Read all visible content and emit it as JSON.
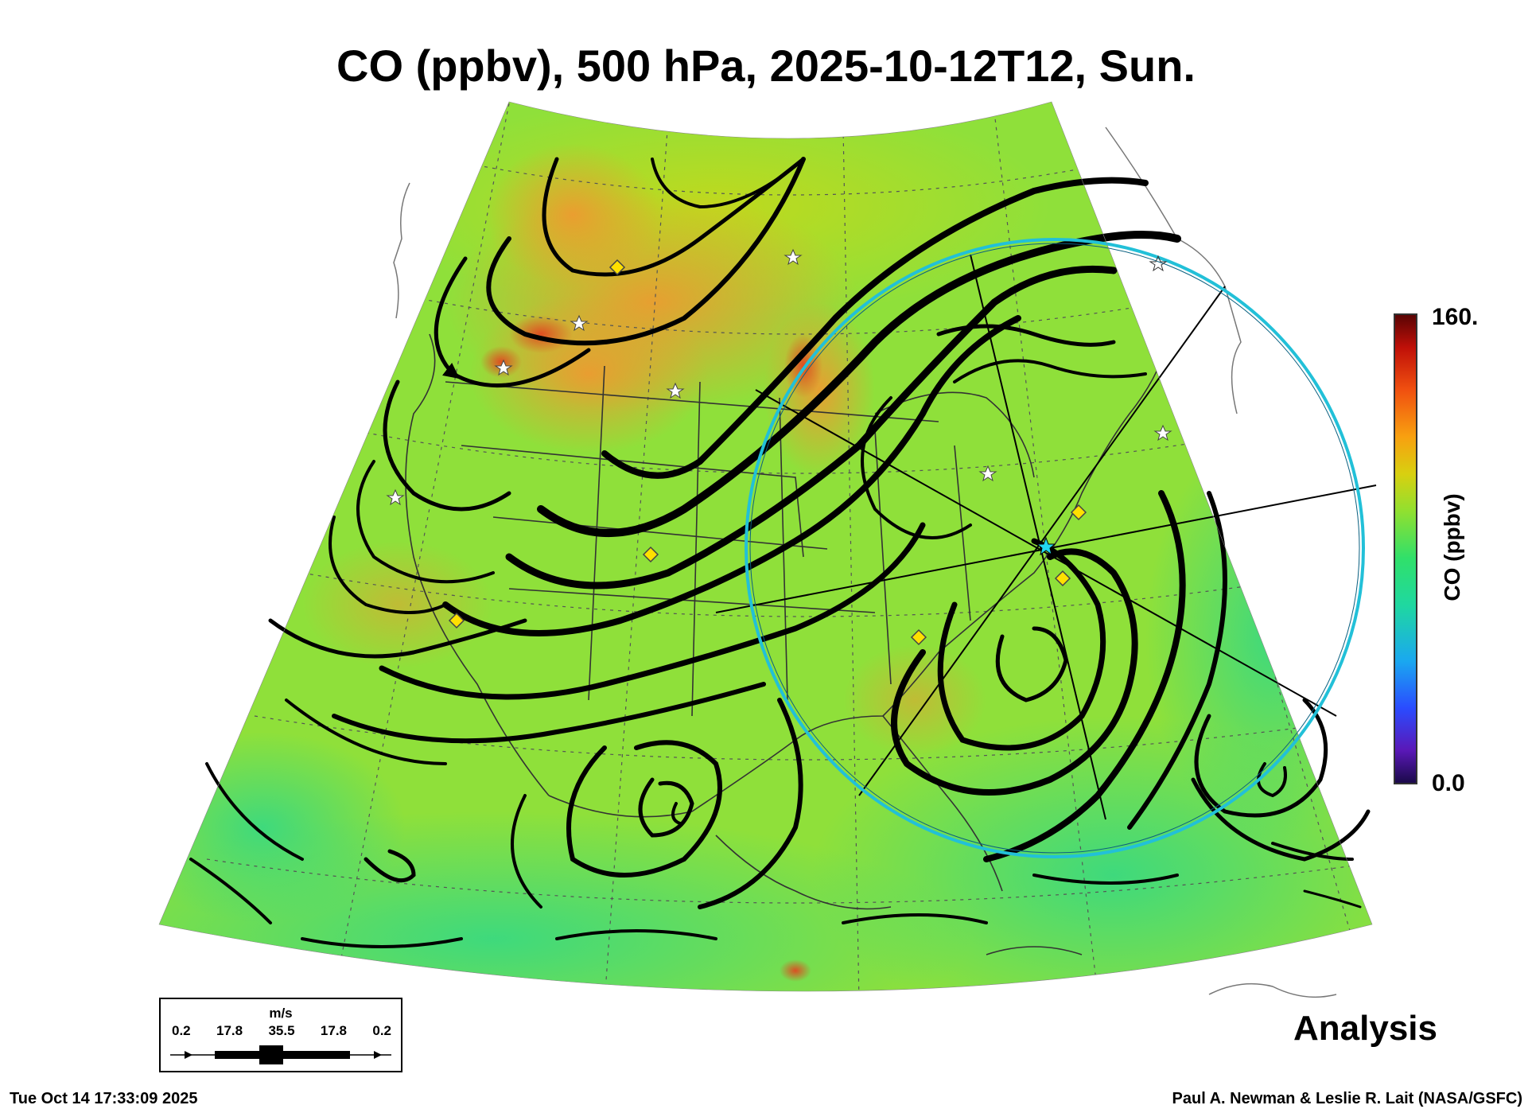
{
  "title": "CO (ppbv), 500 hPa, 2025-10-12T12, Sun.",
  "colorbar": {
    "max_label": "160.",
    "min_label": "0.0",
    "title": "CO (ppbv)",
    "colors": [
      "#1b0a4a",
      "#5a18b8",
      "#2a4cff",
      "#1aa8f0",
      "#1fd8a0",
      "#30e06a",
      "#90e030",
      "#d8d010",
      "#f8a010",
      "#f05010",
      "#c01008",
      "#5a0404"
    ]
  },
  "wind_scale": {
    "unit": "m/s",
    "values": [
      "0.2",
      "17.8",
      "35.5",
      "17.8",
      "0.2"
    ]
  },
  "product_label": "Analysis",
  "footer": {
    "timestamp": "Tue Oct 14 17:33:09 2025",
    "credit": "Paul A. Newman & Leslie R. Lait (NASA/GSFC)"
  },
  "map_colors": {
    "field_base": "#8fe03a",
    "high_co": "#f0a030",
    "low_co": "#30e080",
    "ring": "#22c0d8",
    "marker": "#ffe000"
  }
}
